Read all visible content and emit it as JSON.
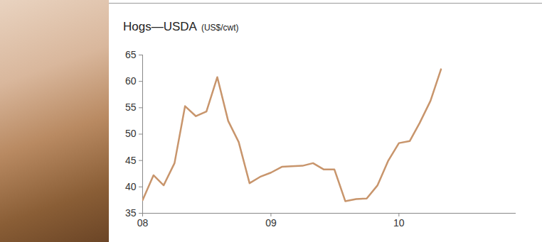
{
  "chart_data": {
    "type": "line",
    "title": "Hogs—USDA",
    "subtitle": "(US$/cwt)",
    "x": [
      "2008-01",
      "2008-02",
      "2008-03",
      "2008-04",
      "2008-05",
      "2008-06",
      "2008-07",
      "2008-08",
      "2008-09",
      "2008-10",
      "2008-11",
      "2008-12",
      "2009-01",
      "2009-02",
      "2009-03",
      "2009-04",
      "2009-05",
      "2009-06",
      "2009-07",
      "2009-08",
      "2009-09",
      "2009-10",
      "2009-11",
      "2009-12",
      "2010-01",
      "2010-02",
      "2010-03",
      "2010-04",
      "2010-05"
    ],
    "values": [
      37.5,
      42.2,
      40.3,
      44.5,
      55.3,
      53.4,
      54.3,
      60.8,
      52.5,
      48.5,
      40.7,
      41.9,
      42.7,
      43.8,
      43.9,
      44.0,
      44.5,
      43.3,
      43.3,
      37.3,
      37.7,
      37.8,
      40.3,
      44.9,
      48.3,
      48.7,
      52.1,
      56.3,
      62.3
    ],
    "color": "#c8956c",
    "xlim": [
      "2008-01",
      "2010-12"
    ],
    "xticks": [
      {
        "value": "2008-01",
        "label": "08"
      },
      {
        "value": "2009-01",
        "label": "09"
      },
      {
        "value": "2010-01",
        "label": "10"
      }
    ],
    "ylim": [
      35,
      65
    ],
    "yticks": [
      35,
      40,
      45,
      50,
      55,
      60,
      65
    ],
    "grid": false
  }
}
